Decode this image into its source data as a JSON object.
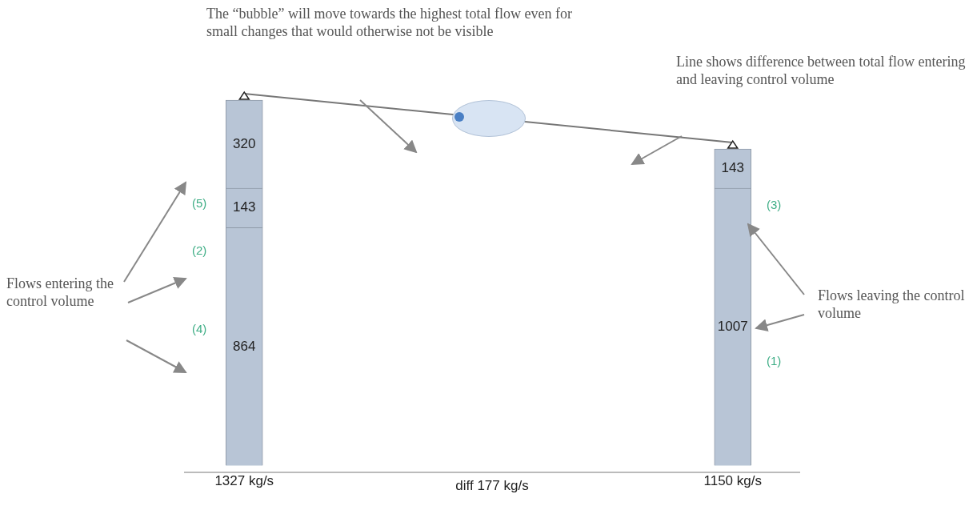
{
  "chart_data": {
    "type": "bar",
    "stacked": true,
    "categories": [
      "1327 kg/s",
      "1150 kg/s"
    ],
    "series": [
      {
        "color": "#b8c5d6",
        "values": [
          864,
          1007
        ],
        "value_labels": [
          "864",
          "1007"
        ]
      },
      {
        "color": "#b8c5d6",
        "values": [
          143,
          143
        ],
        "value_labels": [
          "143",
          "143"
        ]
      },
      {
        "color": "#b8c5d6",
        "values": [
          320,
          null
        ],
        "value_labels": [
          "320",
          null
        ]
      }
    ],
    "legend": false,
    "grid": false,
    "annotations": [
      "The “bubble” will move towards the highest total flow even for small changes that would otherwise not be visible",
      "Line shows difference between total flow entering and leaving control volume",
      "Flows entering the control volume",
      "Flows leaving the control volume",
      "(4)",
      "(2)",
      "(5)",
      "(1)",
      "(3)",
      "diff 177 kg/s"
    ]
  }
}
